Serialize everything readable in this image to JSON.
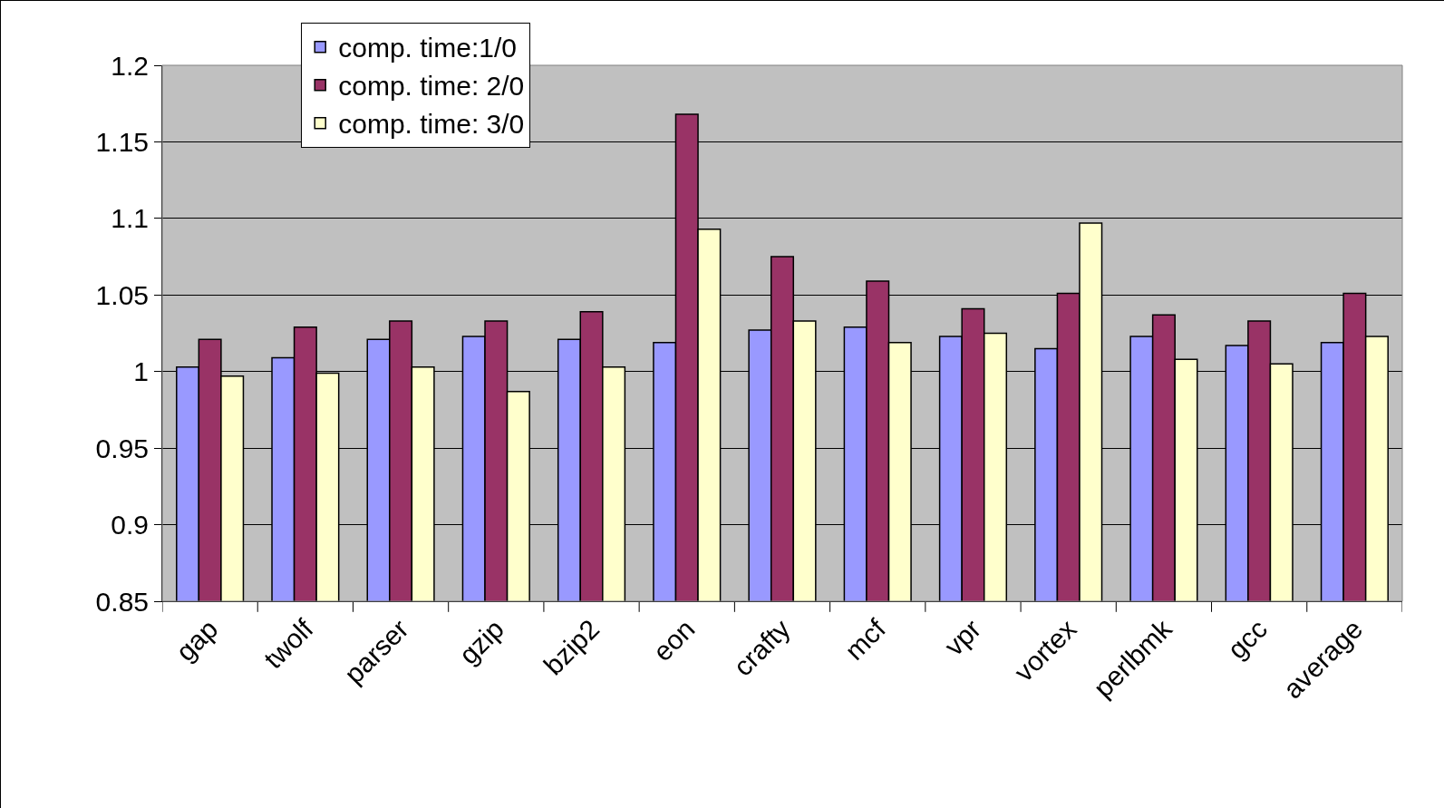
{
  "chart_data": {
    "type": "bar",
    "categories": [
      "gap",
      "twolf",
      "parser",
      "gzip",
      "bzip2",
      "eon",
      "crafty",
      "mcf",
      "vpr",
      "vortex",
      "perlbmk",
      "gcc",
      "average"
    ],
    "series": [
      {
        "name": "comp. time:1/0",
        "color": "#9999ff",
        "values": [
          1.003,
          1.009,
          1.021,
          1.023,
          1.021,
          1.019,
          1.027,
          1.029,
          1.023,
          1.015,
          1.023,
          1.017,
          1.019
        ]
      },
      {
        "name": "comp. time: 2/0",
        "color": "#993366",
        "values": [
          1.021,
          1.029,
          1.033,
          1.033,
          1.039,
          1.168,
          1.075,
          1.059,
          1.041,
          1.051,
          1.037,
          1.033,
          1.051
        ]
      },
      {
        "name": "comp. time: 3/0",
        "color": "#ffffcc",
        "values": [
          0.997,
          0.999,
          1.003,
          0.987,
          1.003,
          1.093,
          1.033,
          1.019,
          1.025,
          1.097,
          1.008,
          1.005,
          1.023
        ]
      }
    ],
    "ylim": [
      0.85,
      1.2
    ],
    "yticks": [
      0.85,
      0.9,
      0.95,
      1,
      1.05,
      1.1,
      1.15,
      1.2
    ],
    "grid": "y",
    "legend": "top left"
  }
}
